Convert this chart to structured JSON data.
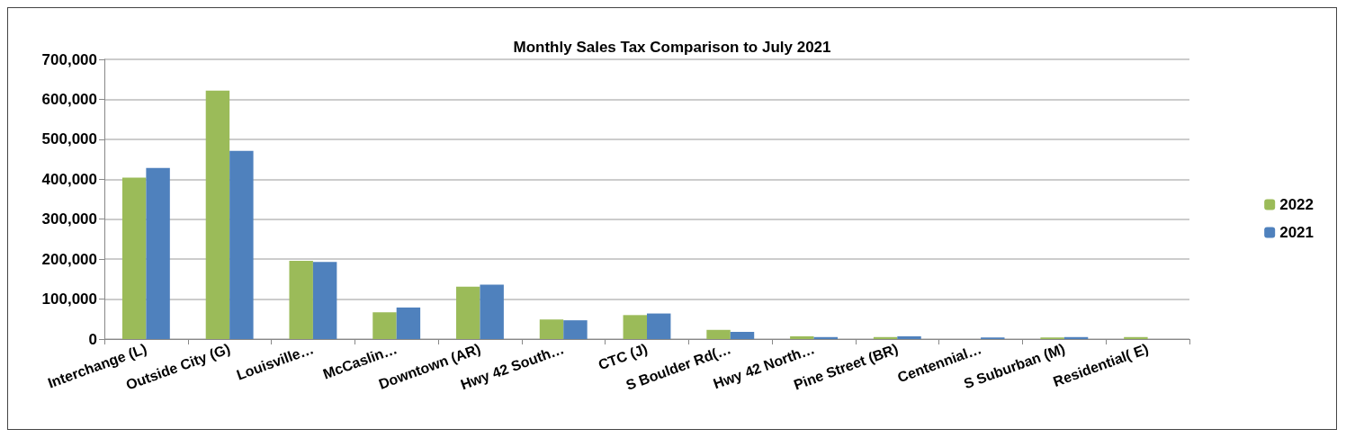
{
  "chart_data": {
    "type": "bar",
    "title": "Monthly Sales Tax Comparison to July 2021",
    "categories": [
      "Interchange (L)",
      "Outside City (G)",
      "Louisville…",
      "McCaslin…",
      "Downtown (AR)",
      "Hwy 42 South…",
      "CTC (J)",
      "S Boulder Rd(…",
      "Hwy 42 North…",
      "Pine Street (BR)",
      "Centennial…",
      "S Suburban (M)",
      "Residential( E)"
    ],
    "series": [
      {
        "name": "2022",
        "color": "#9bbb59",
        "values": [
          404000,
          622000,
          196000,
          67000,
          131000,
          49000,
          60000,
          23000,
          7000,
          5000,
          null,
          4000,
          5000
        ]
      },
      {
        "name": "2021",
        "color": "#4f81bd",
        "values": [
          428000,
          471000,
          193000,
          79000,
          136000,
          47000,
          64000,
          18000,
          5000,
          7000,
          4000,
          5000,
          null
        ]
      }
    ],
    "ylim": [
      0,
      700000
    ],
    "yticks": [
      {
        "value": 0,
        "label": "0"
      },
      {
        "value": 100000,
        "label": "100,000"
      },
      {
        "value": 200000,
        "label": "200,000"
      },
      {
        "value": 300000,
        "label": "300,000"
      },
      {
        "value": 400000,
        "label": "400,000"
      },
      {
        "value": 500000,
        "label": "500,000"
      },
      {
        "value": 600000,
        "label": "600,000"
      },
      {
        "value": 700000,
        "label": "700,000"
      }
    ],
    "grid": "y",
    "legend": "right"
  }
}
